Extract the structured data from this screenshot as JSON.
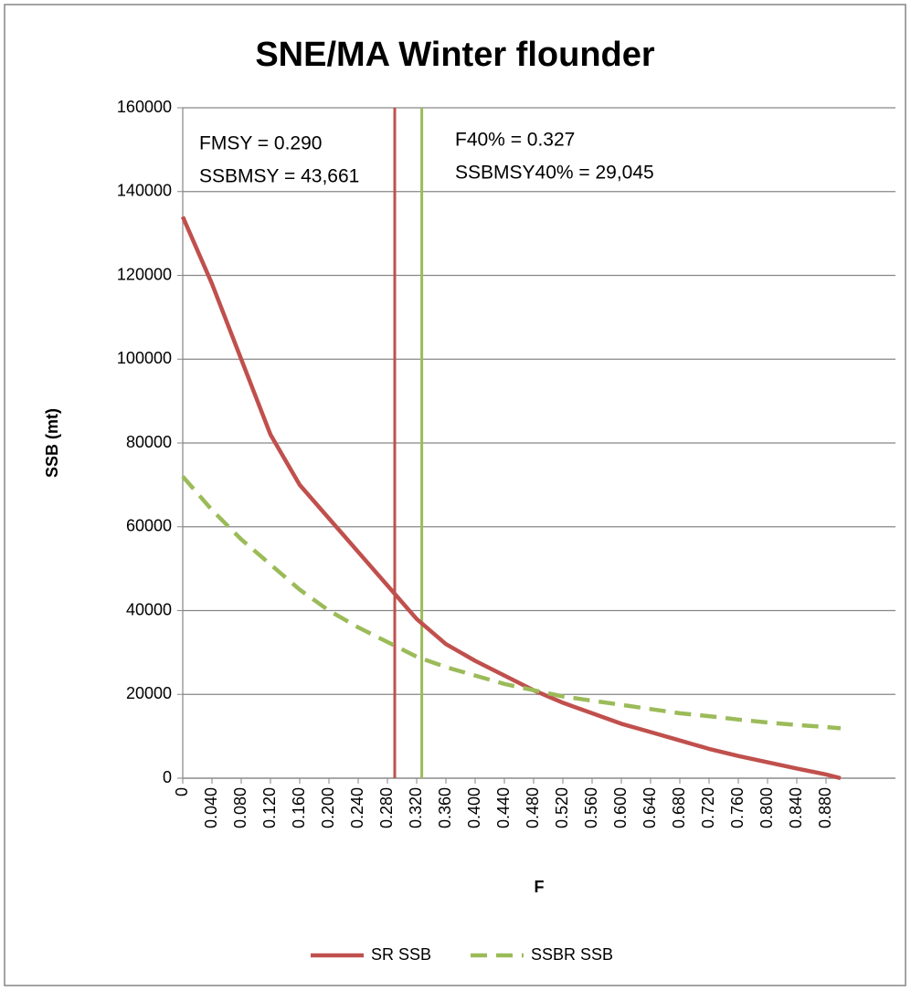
{
  "chart_data": {
    "type": "line",
    "title": "SNE/MA Winter flounder",
    "x_label": "F",
    "y_label": "SSB  (mt)",
    "x": [
      0,
      0.04,
      0.08,
      0.12,
      0.16,
      0.2,
      0.24,
      0.28,
      0.32,
      0.36,
      0.4,
      0.44,
      0.48,
      0.52,
      0.56,
      0.6,
      0.64,
      0.68,
      0.72,
      0.76,
      0.8,
      0.84,
      0.88,
      0.9
    ],
    "series": [
      {
        "name": "SR SSB",
        "color": "#c0504d",
        "dashed": false,
        "values": [
          134000,
          118000,
          100000,
          82000,
          70000,
          62000,
          54000,
          46000,
          38000,
          32000,
          28000,
          24500,
          21000,
          18000,
          15500,
          13000,
          11000,
          9000,
          7000,
          5300,
          3800,
          2300,
          900,
          0
        ]
      },
      {
        "name": "SSBR SSB",
        "color": "#9bbb59",
        "dashed": true,
        "values": [
          72000,
          64000,
          57000,
          51000,
          45000,
          40000,
          36000,
          32500,
          29000,
          26500,
          24500,
          22500,
          21000,
          19500,
          18500,
          17500,
          16500,
          15500,
          14800,
          14000,
          13300,
          12700,
          12200,
          11900
        ]
      }
    ],
    "reference_lines": [
      {
        "x": 0.29,
        "color": "#c0504d"
      },
      {
        "x": 0.327,
        "color": "#9bbb59"
      }
    ],
    "annotations": [
      "FMSY = 0.290",
      "SSBMSY = 43,661",
      "F40% = 0.327",
      "SSBMSY40% = 29,045"
    ],
    "xlim": [
      0,
      0.975
    ],
    "xticks": [
      0,
      {
        "value": 0.04,
        "label": "0.040"
      },
      {
        "value": 0.08,
        "label": "0.080"
      },
      {
        "value": 0.12,
        "label": "0.120"
      },
      {
        "value": 0.16,
        "label": "0.160"
      },
      {
        "value": 0.2,
        "label": "0.200"
      },
      {
        "value": 0.24,
        "label": "0.240"
      },
      {
        "value": 0.28,
        "label": "0.280"
      },
      {
        "value": 0.32,
        "label": "0.320"
      },
      {
        "value": 0.36,
        "label": "0.360"
      },
      {
        "value": 0.4,
        "label": "0.400"
      },
      {
        "value": 0.44,
        "label": "0.440"
      },
      {
        "value": 0.48,
        "label": "0.480"
      },
      {
        "value": 0.52,
        "label": "0.520"
      },
      {
        "value": 0.56,
        "label": "0.560"
      },
      {
        "value": 0.6,
        "label": "0.600"
      },
      {
        "value": 0.64,
        "label": "0.640"
      },
      {
        "value": 0.68,
        "label": "0.680"
      },
      {
        "value": 0.72,
        "label": "0.720"
      },
      {
        "value": 0.76,
        "label": "0.760"
      },
      {
        "value": 0.8,
        "label": "0.800"
      },
      {
        "value": 0.84,
        "label": "0.840"
      },
      {
        "value": 0.88,
        "label": "0.880"
      }
    ],
    "ylim": [
      0,
      160000
    ],
    "yticks": [
      0,
      20000,
      40000,
      60000,
      80000,
      100000,
      120000,
      140000,
      160000
    ],
    "grid": true
  }
}
